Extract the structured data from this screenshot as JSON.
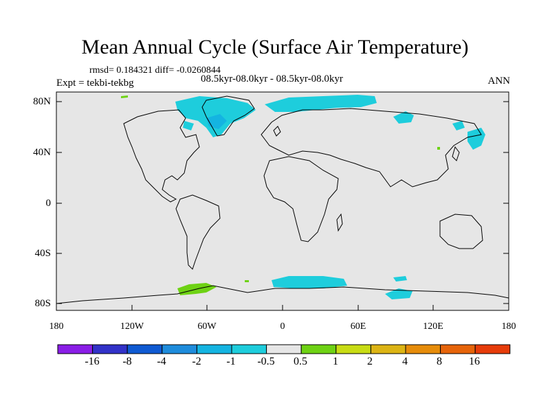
{
  "title": "Mean Annual Cycle (Surface Air Temperature)",
  "stats": "rmsd= 0.184321 diff= -0.0260844",
  "period": "08.5kyr-08.0kyr - 08.5kyr-08.0kyr",
  "experiment": "Expt = tekbi-tekbg",
  "season": "ANN",
  "y_ticks": [
    "80N",
    "40N",
    "0",
    "40S",
    "80S"
  ],
  "x_ticks": [
    "180",
    "120W",
    "60W",
    "0",
    "60E",
    "120E",
    "180"
  ],
  "colorbar": {
    "colors": [
      "#8a1ee6",
      "#3232c8",
      "#0f5ad2",
      "#1e8cdc",
      "#14b4e1",
      "#1ecddc",
      "#e6e6e6",
      "#6ed214",
      "#c8dc14",
      "#dcb414",
      "#e68c0a",
      "#e6640a",
      "#e63c0a"
    ],
    "labels": [
      "-16",
      "-8",
      "-4",
      "-2",
      "-1",
      "-0.5",
      "0.5",
      "1",
      "2",
      "4",
      "8",
      "16"
    ]
  },
  "colors": {
    "ocean_background": "#e6e6e6",
    "cool_anomaly": "#1ecddc",
    "cool_anomaly_2": "#14b4e1",
    "warm_anomaly": "#6ed214"
  }
}
